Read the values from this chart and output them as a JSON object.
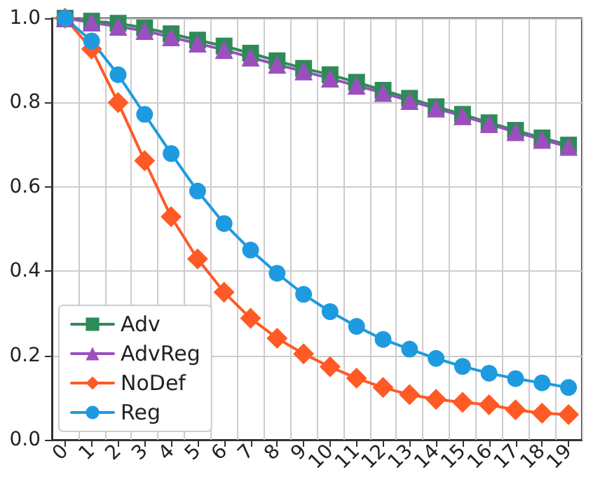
{
  "chart_data": {
    "type": "line",
    "categories": [
      "0",
      "1",
      "2",
      "3",
      "4",
      "5",
      "6",
      "7",
      "8",
      "9",
      "10",
      "11",
      "12",
      "13",
      "14",
      "15",
      "16",
      "17",
      "18",
      "19"
    ],
    "ylim": [
      0,
      1
    ],
    "yticks": [
      {
        "value": 0,
        "label": "0.0"
      },
      {
        "value": 0.2,
        "label": "0.2"
      },
      {
        "value": 0.4,
        "label": "0.4"
      },
      {
        "value": 0.6,
        "label": "0.6"
      },
      {
        "value": 0.8,
        "label": "0.8"
      },
      {
        "value": 1,
        "label": "1.0"
      }
    ],
    "grid": true,
    "legend": "bottom left",
    "series": [
      {
        "name": "Adv",
        "color": "#2e8b57",
        "marker": "square",
        "values": [
          1.0,
          0.993,
          0.988,
          0.977,
          0.963,
          0.948,
          0.934,
          0.917,
          0.899,
          0.881,
          0.866,
          0.848,
          0.829,
          0.81,
          0.79,
          0.772,
          0.752,
          0.734,
          0.716,
          0.699
        ]
      },
      {
        "name": "AdvReg",
        "color": "#9b4fbf",
        "marker": "triangle",
        "values": [
          1.0,
          0.99,
          0.98,
          0.97,
          0.955,
          0.94,
          0.925,
          0.907,
          0.89,
          0.874,
          0.857,
          0.84,
          0.823,
          0.804,
          0.786,
          0.768,
          0.749,
          0.73,
          0.712,
          0.695
        ]
      },
      {
        "name": "NoDef",
        "color": "#ff5a26",
        "marker": "diamond",
        "values": [
          1.0,
          0.927,
          0.8,
          0.662,
          0.529,
          0.429,
          0.35,
          0.288,
          0.241,
          0.204,
          0.173,
          0.146,
          0.124,
          0.107,
          0.096,
          0.089,
          0.083,
          0.071,
          0.063,
          0.06
        ]
      },
      {
        "name": "Reg",
        "color": "#1e9be0",
        "marker": "circle",
        "values": [
          1.0,
          0.946,
          0.866,
          0.772,
          0.679,
          0.59,
          0.513,
          0.45,
          0.395,
          0.345,
          0.304,
          0.269,
          0.238,
          0.215,
          0.193,
          0.174,
          0.158,
          0.145,
          0.135,
          0.124
        ]
      }
    ]
  }
}
